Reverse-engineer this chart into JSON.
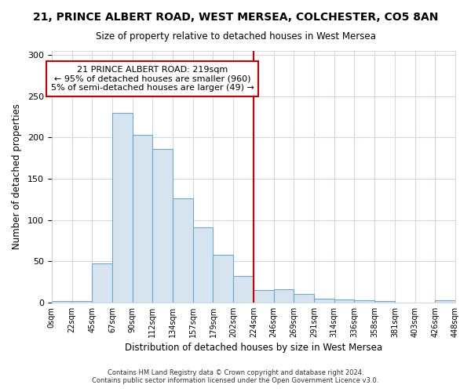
{
  "title": "21, PRINCE ALBERT ROAD, WEST MERSEA, COLCHESTER, CO5 8AN",
  "subtitle": "Size of property relative to detached houses in West Mersea",
  "xlabel": "Distribution of detached houses by size in West Mersea",
  "ylabel": "Number of detached properties",
  "footer_line1": "Contains HM Land Registry data © Crown copyright and database right 2024.",
  "footer_line2": "Contains public sector information licensed under the Open Government Licence v3.0.",
  "bin_labels": [
    "0sqm",
    "22sqm",
    "45sqm",
    "67sqm",
    "90sqm",
    "112sqm",
    "134sqm",
    "157sqm",
    "179sqm",
    "202sqm",
    "224sqm",
    "246sqm",
    "269sqm",
    "291sqm",
    "314sqm",
    "336sqm",
    "358sqm",
    "381sqm",
    "403sqm",
    "426sqm",
    "448sqm"
  ],
  "bar_heights": [
    2,
    2,
    47,
    230,
    203,
    186,
    126,
    91,
    58,
    32,
    15,
    16,
    10,
    5,
    4,
    3,
    2,
    0,
    0,
    3
  ],
  "bar_color": "#d6e4f0",
  "bar_edge_color": "#6fa8c8",
  "vline_color": "#cc0000",
  "annotation_text": "21 PRINCE ALBERT ROAD: 219sqm\n← 95% of detached houses are smaller (960)\n5% of semi-detached houses are larger (49) →",
  "annotation_box_color": "#ffffff",
  "annotation_box_edge_color": "#cc0000",
  "ylim": [
    0,
    305
  ],
  "yticks": [
    0,
    50,
    100,
    150,
    200,
    250,
    300
  ],
  "background_color": "#ffffff",
  "plot_bg_color": "#ffffff",
  "grid_color": "#d0d8e8",
  "title_fontsize": 10,
  "subtitle_fontsize": 9
}
